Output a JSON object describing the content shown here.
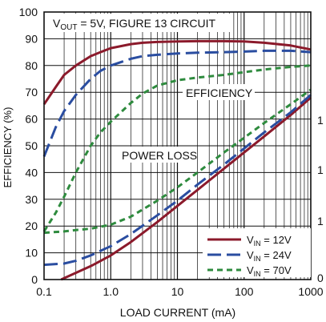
{
  "chart_data": {
    "type": "line",
    "annotation": "Vₒᵤₜ = 5V, FIGURE 13 CIRCUIT",
    "annotation_parts": {
      "v": "V",
      "sub": "OUT",
      "rest": " = 5V, FIGURE 13 CIRCUIT"
    },
    "xlabel": "LOAD CURRENT (mA)",
    "ylabel": "EFFICIENCY (%)",
    "x_scale": "log",
    "xlim": [
      0.1,
      1000
    ],
    "ylim": [
      0,
      100
    ],
    "x_ticks": [
      0.1,
      1,
      10,
      100,
      1000
    ],
    "x_tick_labels": [
      "0.1",
      "1.0",
      "10",
      "100",
      "1000"
    ],
    "y_ticks": [
      0,
      10,
      20,
      30,
      40,
      50,
      60,
      70,
      80,
      90,
      100
    ],
    "y_tick_labels": [
      "0",
      "10",
      "20",
      "30",
      "40",
      "50",
      "60",
      "70",
      "80",
      "90",
      "100"
    ],
    "right_axis_partial_labels": [
      "1",
      "1",
      "1",
      "0"
    ],
    "curve_labels": {
      "efficiency": "EFFICIENCY",
      "power_loss": "POWER LOSS"
    },
    "grid": true,
    "legend_position": "bottom-right",
    "legend": [
      {
        "v": "V",
        "sub": "IN",
        "rest": " = 12V",
        "color": "#8b1a2b",
        "dash": "solid"
      },
      {
        "v": "V",
        "sub": "IN",
        "rest": " = 24V",
        "color": "#2a4da0",
        "dash": "long-dash"
      },
      {
        "v": "V",
        "sub": "IN",
        "rest": " = 70V",
        "color": "#2e8b3e",
        "dash": "short-dash"
      }
    ],
    "series": [
      {
        "name": "VIN = 12V efficiency",
        "color": "#8b1a2b",
        "dash": "solid",
        "x": [
          0.1,
          0.15,
          0.2,
          0.3,
          0.5,
          0.7,
          1,
          2,
          3,
          5,
          10,
          20,
          50,
          100,
          200,
          500,
          1000
        ],
        "y": [
          65.5,
          72,
          76.5,
          80,
          83.5,
          85,
          86.5,
          88,
          88.5,
          88.8,
          89,
          89.1,
          89.1,
          89,
          88.5,
          87.5,
          86
        ]
      },
      {
        "name": "VIN = 24V efficiency",
        "color": "#2a4da0",
        "dash": "long-dash",
        "x": [
          0.1,
          0.15,
          0.2,
          0.3,
          0.5,
          0.7,
          1,
          2,
          3,
          5,
          10,
          20,
          50,
          100,
          200,
          500,
          1000
        ],
        "y": [
          46,
          57,
          63,
          69,
          75,
          78,
          80,
          82.5,
          83.5,
          84,
          84.5,
          84.8,
          85,
          85.2,
          85.5,
          85.5,
          85
        ]
      },
      {
        "name": "VIN = 70V efficiency",
        "color": "#2e8b3e",
        "dash": "short-dash",
        "x": [
          0.1,
          0.15,
          0.2,
          0.3,
          0.5,
          0.7,
          1,
          2,
          3,
          5,
          10,
          20,
          50,
          100,
          200,
          500,
          1000
        ],
        "y": [
          18,
          25,
          31,
          40,
          50,
          55,
          59,
          66,
          69.5,
          72.5,
          74.5,
          75.5,
          76.5,
          77.5,
          78.5,
          79.5,
          80
        ]
      },
      {
        "name": "VIN = 12V power loss",
        "color": "#8b1a2b",
        "dash": "solid",
        "x": [
          0.18,
          0.3,
          0.5,
          1,
          2,
          5,
          10,
          20,
          50,
          100,
          200,
          500,
          1000
        ],
        "y": [
          0,
          2.5,
          5,
          9,
          14,
          21.5,
          27.5,
          33.5,
          41.5,
          47.5,
          53.5,
          61.5,
          68
        ]
      },
      {
        "name": "VIN = 24V power loss",
        "color": "#2a4da0",
        "dash": "long-dash",
        "x": [
          0.1,
          0.2,
          0.3,
          0.5,
          1,
          2,
          5,
          10,
          20,
          50,
          100,
          200,
          500,
          1000
        ],
        "y": [
          5.5,
          6,
          7,
          9,
          12.5,
          17,
          24,
          29.5,
          35.5,
          43,
          49,
          55,
          62.5,
          69
        ]
      },
      {
        "name": "VIN = 70V power loss",
        "color": "#2e8b3e",
        "dash": "short-dash",
        "x": [
          0.1,
          0.2,
          0.3,
          0.5,
          1,
          2,
          5,
          10,
          20,
          50,
          100,
          200,
          500,
          1000
        ],
        "y": [
          17.5,
          18,
          18.5,
          19,
          20.5,
          23.5,
          29.5,
          34.5,
          40,
          47.5,
          53,
          58.5,
          65.5,
          71
        ]
      }
    ]
  }
}
